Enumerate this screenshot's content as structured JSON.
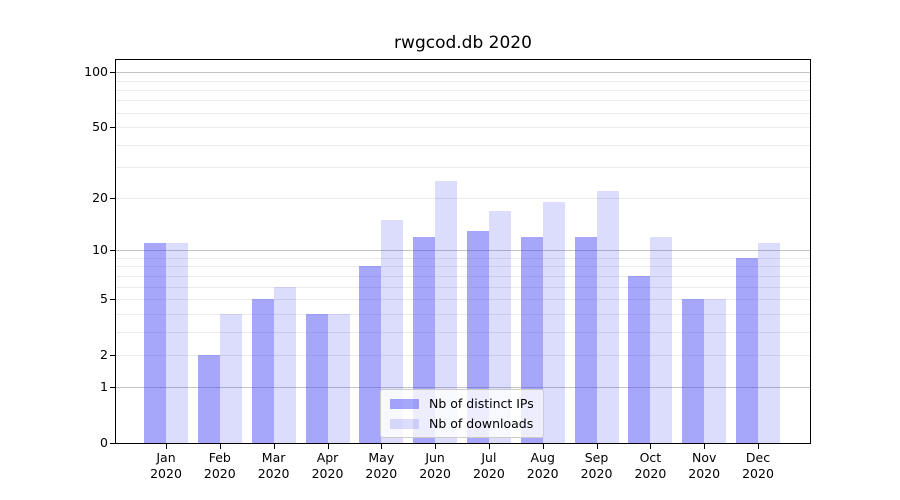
{
  "title": "rwgcod.db 2020",
  "chart_data": {
    "type": "bar",
    "title": "rwgcod.db 2020",
    "categories": [
      "Jan 2020",
      "Feb 2020",
      "Mar 2020",
      "Apr 2020",
      "May 2020",
      "Jun 2020",
      "Jul 2020",
      "Aug 2020",
      "Sep 2020",
      "Oct 2020",
      "Nov 2020",
      "Dec 2020"
    ],
    "series": [
      {
        "name": "Nb of distinct IPs",
        "color": "rgba(60,60,245,0.46)",
        "values": [
          11,
          2,
          5,
          4,
          8,
          12,
          13,
          12,
          12,
          7,
          5,
          9
        ]
      },
      {
        "name": "Nb of downloads",
        "color": "rgba(60,60,245,0.18)",
        "values": [
          11,
          4,
          6,
          4,
          15,
          25,
          17,
          19,
          22,
          12,
          5,
          11
        ]
      }
    ],
    "y_axis": {
      "scale": "log1p",
      "min": 0,
      "max": 116.4,
      "tick_values": [
        0,
        1,
        2,
        5,
        10,
        20,
        50,
        100
      ],
      "tick_labels": [
        "0",
        "1",
        "2",
        "5",
        "10",
        "20",
        "50",
        "100"
      ],
      "major_grid_at": [
        1,
        10,
        100
      ],
      "minor_grid_at": [
        2,
        3,
        4,
        5,
        6,
        7,
        8,
        9,
        20,
        30,
        40,
        50,
        60,
        70,
        80,
        90
      ]
    },
    "x_axis": {
      "tick_label_lines": 2
    },
    "legend": {
      "position": "lower center",
      "items": [
        {
          "label": "Nb of distinct IPs",
          "color": "rgba(60,60,245,0.46)"
        },
        {
          "label": "Nb of downloads",
          "color": "rgba(60,60,245,0.18)"
        }
      ]
    },
    "grid": true
  },
  "colors": {
    "background": "#ffffff",
    "bar_primary": "rgba(60,60,245,0.46)",
    "bar_secondary": "rgba(60,60,245,0.18)",
    "grid_major": "#c4c4c4",
    "grid_minor": "#ebebeb",
    "spine": "#000000",
    "text": "#000000",
    "legend_border": "#cccccc"
  }
}
